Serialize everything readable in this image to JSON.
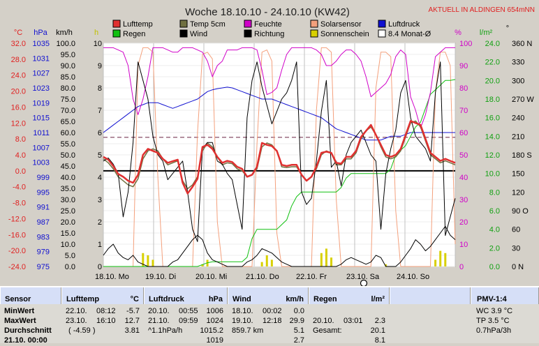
{
  "title": "Woche 18.10.10 - 24.10.10 (KW42)",
  "location_badge": "AKTUELL IN ALDINGEN 654mNN",
  "axis_units": {
    "temp": "°C",
    "pressure": "hPa",
    "wind": "km/h",
    "sun": "h",
    "humidity": "%",
    "rain": "l/m²",
    "direction": "°"
  },
  "legend": [
    {
      "label": "Lufttemp",
      "color": "#e03030",
      "kind": "box"
    },
    {
      "label": "Temp 5cm",
      "color": "#707040",
      "kind": "box"
    },
    {
      "label": "Feuchte",
      "color": "#d000c8",
      "kind": "box"
    },
    {
      "label": "Solarsensor",
      "color": "#f4a07c",
      "kind": "box"
    },
    {
      "label": "Luftdruck",
      "color": "#1010d0",
      "kind": "box"
    },
    {
      "label": "Regen",
      "color": "#10c010",
      "kind": "box"
    },
    {
      "label": "Wind",
      "color": "#000000",
      "kind": "box"
    },
    {
      "label": "Richtung",
      "color": "#000000",
      "kind": "box"
    },
    {
      "label": "Sonnenschein",
      "color": "#d8d000",
      "kind": "box"
    },
    {
      "label": "8.4 Monat-Ø",
      "color": "#ffffff",
      "kind": "outline"
    }
  ],
  "chart_data": {
    "type": "line",
    "title": "Woche 18.10.10 - 24.10.10 (KW42)",
    "x_labels": [
      "18.10. Mo",
      "19.10. Di",
      "20.10. Mi",
      "21.10. Do",
      "22.10. Fr",
      "23.10. Sa",
      "24.10. So"
    ],
    "days": 7,
    "axes": {
      "temp_ticks": [
        "32.0",
        "28.0",
        "24.0",
        "20.0",
        "16.0",
        "12.0",
        "8.0",
        "4.0",
        "0.0",
        "-4.0",
        "-8.0",
        "-12.0",
        "-16.0",
        "-20.0",
        "-24.0"
      ],
      "temp_range": [
        -24,
        32
      ],
      "pressure_ticks": [
        "1035",
        "1031",
        "1027",
        "1023",
        "1019",
        "1015",
        "1011",
        "1007",
        "1003",
        "999",
        "995",
        "991",
        "987",
        "983",
        "979",
        "975"
      ],
      "pressure_range": [
        975,
        1035
      ],
      "wind_ticks": [
        "100.0",
        "95.0",
        "90.0",
        "85.0",
        "80.0",
        "75.0",
        "70.0",
        "65.0",
        "60.0",
        "55.0",
        "50.0",
        "45.0",
        "40.0",
        "35.0",
        "30.0",
        "25.0",
        "20.0",
        "15.0",
        "10.0",
        "5.0",
        "0.0"
      ],
      "wind_range": [
        0,
        100
      ],
      "sun_ticks": [
        "10",
        "9",
        "8",
        "7",
        "6",
        "5",
        "4",
        "3",
        "2",
        "1",
        "0"
      ],
      "sun_range": [
        0,
        10
      ],
      "humidity_ticks": [
        "100",
        "90",
        "80",
        "70",
        "60",
        "50",
        "40",
        "30",
        "20",
        "10",
        "0"
      ],
      "humidity_range": [
        0,
        100
      ],
      "rain_ticks": [
        "24.0",
        "22.0",
        "20.0",
        "18.0",
        "16.0",
        "14.0",
        "12.0",
        "10.0",
        "8.0",
        "6.0",
        "4.0",
        "2.0",
        "0.0"
      ],
      "rain_range": [
        0,
        24
      ],
      "direction_ticks": [
        "360 N",
        "330",
        "300",
        "270 W",
        "240",
        "210",
        "180 S",
        "150",
        "120",
        "90 O",
        "60",
        "30",
        "0 N"
      ],
      "direction_range": [
        0,
        360
      ]
    },
    "reference_lines": {
      "monthly_avg_temp": 8.4,
      "zero_temp": 0.0
    },
    "series": [
      {
        "name": "Lufttemp",
        "unit": "°C",
        "color": "#e03030",
        "values": [
          3.5,
          2.8,
          1.2,
          -0.8,
          -1.5,
          -2.5,
          -3.0,
          -1.0,
          4.0,
          5.5,
          5.0,
          4.5,
          3.0,
          2.0,
          2.4,
          2.8,
          -3.0,
          -5.7,
          -4.0,
          -2.0,
          6.0,
          6.5,
          5.5,
          3.5,
          2.0,
          2.5,
          2.2,
          1.0,
          0.5,
          -1.5,
          -1.0,
          1.0,
          7.0,
          6.5,
          6.2,
          5.0,
          1.5,
          1.2,
          1.5,
          1.5,
          -1.0,
          -2.5,
          -1.5,
          1.0,
          4.5,
          4.8,
          4.5,
          2.0,
          1.8,
          3.5,
          3.5,
          5.0,
          8.5,
          10.0,
          11.5,
          9.0,
          6.5,
          4.0,
          3.5,
          4.0,
          5.5,
          9.0,
          12.5,
          12.0,
          11.5,
          8.0,
          4.5,
          3.5,
          2.5,
          3.0,
          2.5,
          2.0
        ]
      },
      {
        "name": "Temp 5cm",
        "unit": "°C",
        "color": "#707040",
        "values": [
          3.0,
          2.0,
          0.5,
          -1.5,
          -2.5,
          -3.5,
          -4.0,
          -2.0,
          3.0,
          5.0,
          5.5,
          5.0,
          3.0,
          1.5,
          2.0,
          2.5,
          -2.5,
          -4.5,
          -3.5,
          -1.5,
          5.0,
          7.0,
          6.0,
          3.5,
          1.5,
          2.0,
          1.8,
          0.5,
          0.0,
          -1.5,
          -1.0,
          0.5,
          6.0,
          7.0,
          6.5,
          5.0,
          1.0,
          0.8,
          1.0,
          1.0,
          -1.0,
          -2.5,
          -1.5,
          0.5,
          4.0,
          5.0,
          4.5,
          1.5,
          1.5,
          3.0,
          3.0,
          4.5,
          8.0,
          10.0,
          11.0,
          9.0,
          6.0,
          3.5,
          3.0,
          3.5,
          5.0,
          8.5,
          12.0,
          12.5,
          11.0,
          7.5,
          4.0,
          3.0,
          2.0,
          2.5,
          2.0,
          1.5
        ]
      },
      {
        "name": "Feuchte",
        "unit": "%",
        "color": "#d000c8",
        "values": [
          98,
          98,
          98,
          97,
          96,
          90,
          75,
          68,
          75,
          85,
          98,
          98,
          98,
          97,
          96,
          96,
          98,
          98,
          98,
          97,
          96,
          92,
          85,
          90,
          92,
          97,
          97,
          97,
          98,
          98,
          98,
          97,
          88,
          77,
          78,
          80,
          88,
          95,
          98,
          98,
          98,
          98,
          98,
          97,
          95,
          90,
          90,
          92,
          95,
          97,
          97,
          95,
          92,
          85,
          76,
          78,
          80,
          82,
          86,
          94,
          97,
          95,
          76,
          70,
          62,
          68,
          78,
          94,
          96,
          98,
          98,
          98
        ]
      },
      {
        "name": "Luftdruck",
        "unit": "hPa",
        "color": "#1010d0",
        "values": [
          1011,
          1012,
          1013,
          1014,
          1015,
          1016,
          1017,
          1018,
          1018.5,
          1019,
          1019,
          1019,
          1018.5,
          1018,
          1017.5,
          1018,
          1018.5,
          1019,
          1019.5,
          1020,
          1021,
          1022,
          1022.5,
          1022.8,
          1023,
          1023.2,
          1023,
          1022.5,
          1022,
          1021.5,
          1021,
          1020.5,
          1020,
          1020,
          1020,
          1019.5,
          1019,
          1018.5,
          1018,
          1017.5,
          1017,
          1016.5,
          1016,
          1015.5,
          1015,
          1014,
          1013,
          1012,
          1011.5,
          1011,
          1010.5,
          1010,
          1009.5,
          1009,
          1009,
          1009,
          1009,
          1009.5,
          1010,
          1010,
          1010,
          1010.5,
          1011,
          1011,
          1011,
          1011,
          1011,
          1011,
          1011,
          1011,
          1011,
          1011
        ]
      },
      {
        "name": "Regen",
        "unit": "l/m²",
        "color": "#10c010",
        "values": [
          0,
          0,
          0,
          0,
          0,
          0,
          0,
          0,
          0,
          0,
          0,
          0,
          0,
          0,
          0,
          0,
          0,
          0,
          0,
          0,
          0.2,
          0.4,
          0.5,
          0.5,
          0.5,
          0.5,
          0.5,
          0.5,
          0.5,
          1.0,
          3.0,
          4.0,
          4.0,
          4.0,
          4.0,
          4.0,
          4.5,
          5.0,
          6.5,
          7.5,
          8.0,
          8.0,
          8.0,
          8.0,
          8.0,
          8.0,
          8.0,
          8.0,
          8.5,
          9.5,
          10.0,
          10.0,
          10.0,
          10.0,
          10.0,
          10.0,
          10.0,
          10.0,
          10.5,
          12.0,
          12.5,
          13.0,
          14.0,
          15.0,
          15.5,
          17.0,
          18.5,
          19.0,
          19.5,
          20.0,
          20.0,
          20.1
        ]
      },
      {
        "name": "Wind",
        "unit": "km/h",
        "color": "#000000",
        "values": [
          5,
          8,
          10,
          6,
          4,
          3,
          5,
          2,
          1,
          0,
          0,
          0,
          0,
          0,
          2,
          3,
          6,
          9,
          12,
          14,
          12,
          6,
          3,
          2,
          1,
          0,
          0,
          0,
          0,
          2,
          3,
          5,
          8,
          7,
          6,
          4,
          2,
          1,
          0,
          0,
          0,
          0,
          0,
          0,
          0,
          0,
          0,
          0,
          1,
          3,
          4,
          3,
          2,
          1,
          2,
          5,
          4,
          0,
          0,
          0,
          2,
          5,
          8,
          12,
          10,
          7,
          9,
          12,
          15,
          18,
          14,
          12
        ]
      },
      {
        "name": "Solarsensor",
        "unit": "%",
        "color": "#f4a07c",
        "values": [
          0,
          0,
          0,
          0,
          0,
          0,
          0,
          90,
          98,
          98,
          96,
          40,
          0,
          0,
          0,
          0,
          0,
          0,
          0,
          60,
          95,
          96,
          93,
          20,
          0,
          0,
          0,
          0,
          0,
          0,
          0,
          55,
          96,
          97,
          92,
          15,
          0,
          0,
          0,
          0,
          0,
          0,
          0,
          70,
          98,
          98,
          96,
          30,
          0,
          0,
          0,
          0,
          0,
          0,
          0,
          80,
          96,
          96,
          94,
          25,
          0,
          0,
          0,
          0,
          0,
          0,
          0,
          78,
          96,
          96,
          90,
          10
        ]
      },
      {
        "name": "Sonnenschein",
        "unit": "h",
        "color": "#d8d000",
        "values": [
          0,
          0,
          0,
          0,
          0,
          0,
          0,
          0,
          0.6,
          0.5,
          0.3,
          0,
          0,
          0,
          0,
          0,
          0,
          0,
          0,
          0,
          0.1,
          0.3,
          0,
          0,
          0,
          0,
          0,
          0,
          0,
          0,
          0,
          0,
          0.2,
          0.5,
          0.3,
          0,
          0,
          0,
          0,
          0,
          0,
          0,
          0,
          0,
          0.6,
          0.8,
          0.4,
          0,
          0,
          0,
          0,
          0,
          0,
          0,
          0,
          0,
          0,
          0.1,
          0,
          0,
          0,
          0,
          0,
          0,
          0,
          0,
          0,
          0.3,
          0.7,
          0.6,
          0,
          0
        ]
      },
      {
        "name": "Richtung",
        "unit": "°",
        "color": "#000000",
        "values": [
          170,
          175,
          165,
          150,
          80,
          120,
          200,
          330,
          300,
          270,
          210,
          180,
          170,
          140,
          150,
          160,
          170,
          120,
          60,
          40,
          190,
          200,
          200,
          170,
          165,
          150,
          140,
          100,
          60,
          240,
          300,
          330,
          290,
          260,
          230,
          250,
          270,
          280,
          300,
          330,
          120,
          100,
          110,
          170,
          250,
          300,
          160,
          170,
          130,
          180,
          200,
          210,
          220,
          200,
          180,
          170,
          60,
          150,
          190,
          220,
          280,
          300,
          240,
          210,
          200,
          190,
          170,
          280,
          330,
          50,
          80,
          110
        ]
      }
    ]
  },
  "stats": {
    "sensor": {
      "header": "Sensor",
      "rows": [
        "MinWert",
        "MaxWert",
        "Durchschnitt",
        "21.10. 00:00"
      ]
    },
    "lufttemp": {
      "header": "Lufttemp",
      "unit": "°C",
      "rows": [
        {
          "a": "22.10.",
          "b": "08:12",
          "v": "-5.7"
        },
        {
          "a": "23.10.",
          "b": "16:10",
          "v": "12.7"
        },
        {
          "a": "( -4.59 )",
          "b": "",
          "v": "3.81"
        },
        {
          "a": "",
          "b": "",
          "v": ""
        }
      ]
    },
    "luftdruck": {
      "header": "Luftdruck",
      "unit": "hPa",
      "rows": [
        {
          "a": "20.10.",
          "b": "00:55",
          "v": "1006"
        },
        {
          "a": "21.10.",
          "b": "09:59",
          "v": "1024"
        },
        {
          "a": "^1.1hPa/h",
          "b": "",
          "v": "1015.2"
        },
        {
          "a": "",
          "b": "",
          "v": "1019"
        }
      ]
    },
    "wind": {
      "header": "Wind",
      "unit": "km/h",
      "rows": [
        {
          "a": "18.10.",
          "b": "00:02",
          "v": "0.0"
        },
        {
          "a": "19.10.",
          "b": "12:18",
          "v": "29.9"
        },
        {
          "a": "859.7 km",
          "b": "",
          "v": "5.1"
        },
        {
          "a": "",
          "b": "",
          "v": "2.7"
        }
      ]
    },
    "regen": {
      "header": "Regen",
      "unit": "l/m²",
      "rows": [
        {
          "a": "",
          "b": "",
          "v": ""
        },
        {
          "a": "20.10.",
          "b": "03:01",
          "v": "2.3"
        },
        {
          "a": "Gesamt:",
          "b": "",
          "v": "20.1"
        },
        {
          "a": "",
          "b": "",
          "v": "8.1"
        }
      ]
    },
    "pmv": {
      "header": "PMV-1:4",
      "rows": [
        "WC 3.9 °C",
        "TP 3.5 °C",
        "0.7hPa/3h",
        ""
      ]
    }
  }
}
